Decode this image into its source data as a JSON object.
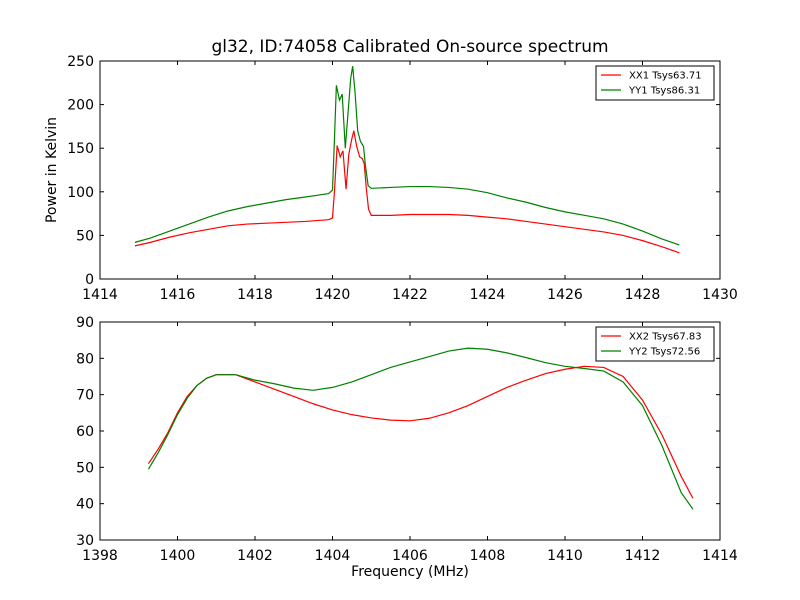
{
  "chart_data": [
    {
      "type": "line",
      "title": "gl32, ID:74058 Calibrated On-source spectrum",
      "xlabel": "",
      "ylabel": "Power in Kelvin",
      "xlim": [
        1414,
        1430
      ],
      "ylim": [
        0,
        250
      ],
      "xticks": [
        1414,
        1416,
        1418,
        1420,
        1422,
        1424,
        1426,
        1428,
        1430
      ],
      "yticks": [
        0,
        50,
        100,
        150,
        200,
        250
      ],
      "grid": false,
      "legend": "top-right",
      "series": [
        {
          "name": "XX1 Tsys63.71",
          "color": "#ff0000",
          "points": [
            [
              1414.9,
              38
            ],
            [
              1415.3,
              42
            ],
            [
              1415.8,
              48
            ],
            [
              1416.3,
              53
            ],
            [
              1416.8,
              57
            ],
            [
              1417.3,
              61
            ],
            [
              1417.8,
              63
            ],
            [
              1418.3,
              64
            ],
            [
              1418.8,
              65
            ],
            [
              1419.3,
              66
            ],
            [
              1419.6,
              67
            ],
            [
              1419.9,
              68
            ],
            [
              1420.0,
              70
            ],
            [
              1420.05,
              100
            ],
            [
              1420.12,
              153
            ],
            [
              1420.2,
              140
            ],
            [
              1420.27,
              147
            ],
            [
              1420.35,
              103
            ],
            [
              1420.42,
              143
            ],
            [
              1420.5,
              161
            ],
            [
              1420.55,
              170
            ],
            [
              1420.62,
              153
            ],
            [
              1420.7,
              140
            ],
            [
              1420.77,
              138
            ],
            [
              1420.82,
              132
            ],
            [
              1420.87,
              105
            ],
            [
              1420.93,
              80
            ],
            [
              1421.0,
              73
            ],
            [
              1421.5,
              73
            ],
            [
              1422.0,
              74
            ],
            [
              1422.5,
              74
            ],
            [
              1423.0,
              74
            ],
            [
              1423.5,
              73
            ],
            [
              1424.0,
              71
            ],
            [
              1424.5,
              69
            ],
            [
              1425.0,
              66
            ],
            [
              1425.5,
              63
            ],
            [
              1426.0,
              60
            ],
            [
              1426.5,
              57
            ],
            [
              1427.0,
              54
            ],
            [
              1427.5,
              50
            ],
            [
              1428.0,
              44
            ],
            [
              1428.5,
              37
            ],
            [
              1428.95,
              30
            ]
          ]
        },
        {
          "name": "YY1 Tsys86.31",
          "color": "#008000",
          "points": [
            [
              1414.9,
              42
            ],
            [
              1415.3,
              47
            ],
            [
              1415.8,
              55
            ],
            [
              1416.3,
              63
            ],
            [
              1416.8,
              71
            ],
            [
              1417.3,
              78
            ],
            [
              1417.8,
              83
            ],
            [
              1418.3,
              87
            ],
            [
              1418.8,
              91
            ],
            [
              1419.3,
              94
            ],
            [
              1419.6,
              96
            ],
            [
              1419.9,
              98
            ],
            [
              1420.0,
              102
            ],
            [
              1420.05,
              160
            ],
            [
              1420.1,
              222
            ],
            [
              1420.18,
              205
            ],
            [
              1420.25,
              212
            ],
            [
              1420.33,
              150
            ],
            [
              1420.4,
              190
            ],
            [
              1420.47,
              230
            ],
            [
              1420.52,
              244
            ],
            [
              1420.58,
              215
            ],
            [
              1420.65,
              170
            ],
            [
              1420.72,
              158
            ],
            [
              1420.8,
              152
            ],
            [
              1420.85,
              130
            ],
            [
              1420.92,
              107
            ],
            [
              1421.0,
              104
            ],
            [
              1421.5,
              105
            ],
            [
              1422.0,
              106
            ],
            [
              1422.5,
              106
            ],
            [
              1423.0,
              105
            ],
            [
              1423.5,
              103
            ],
            [
              1424.0,
              99
            ],
            [
              1424.5,
              93
            ],
            [
              1425.0,
              88
            ],
            [
              1425.5,
              82
            ],
            [
              1426.0,
              77
            ],
            [
              1426.5,
              73
            ],
            [
              1427.0,
              69
            ],
            [
              1427.5,
              63
            ],
            [
              1428.0,
              55
            ],
            [
              1428.5,
              46
            ],
            [
              1428.95,
              39
            ]
          ]
        }
      ]
    },
    {
      "type": "line",
      "title": "",
      "xlabel": "Frequency (MHz)",
      "ylabel": "",
      "xlim": [
        1398,
        1414
      ],
      "ylim": [
        30,
        90
      ],
      "xticks": [
        1398,
        1400,
        1402,
        1404,
        1406,
        1408,
        1410,
        1412,
        1414
      ],
      "yticks": [
        30,
        40,
        50,
        60,
        70,
        80,
        90
      ],
      "grid": false,
      "legend": "top-right",
      "series": [
        {
          "name": "XX2 Tsys67.83",
          "color": "#ff0000",
          "points": [
            [
              1399.25,
              51
            ],
            [
              1399.5,
              55
            ],
            [
              1399.75,
              59.5
            ],
            [
              1400.0,
              65
            ],
            [
              1400.25,
              69.5
            ],
            [
              1400.5,
              72.5
            ],
            [
              1400.75,
              74.5
            ],
            [
              1401.0,
              75.5
            ],
            [
              1401.5,
              75.5
            ],
            [
              1402.0,
              73.5
            ],
            [
              1402.5,
              71.5
            ],
            [
              1403.0,
              69.5
            ],
            [
              1403.5,
              67.5
            ],
            [
              1404.0,
              65.8
            ],
            [
              1404.5,
              64.5
            ],
            [
              1405.0,
              63.6
            ],
            [
              1405.5,
              63.0
            ],
            [
              1406.0,
              62.8
            ],
            [
              1406.5,
              63.5
            ],
            [
              1407.0,
              65
            ],
            [
              1407.5,
              67
            ],
            [
              1408.0,
              69.5
            ],
            [
              1408.5,
              72
            ],
            [
              1409.0,
              74
            ],
            [
              1409.5,
              75.8
            ],
            [
              1410.0,
              77
            ],
            [
              1410.5,
              77.8
            ],
            [
              1411.0,
              77.5
            ],
            [
              1411.5,
              75
            ],
            [
              1412.0,
              68.5
            ],
            [
              1412.5,
              59
            ],
            [
              1413.0,
              47.5
            ],
            [
              1413.3,
              41.5
            ]
          ]
        },
        {
          "name": "YY2 Tsys72.56",
          "color": "#008000",
          "points": [
            [
              1399.25,
              49.5
            ],
            [
              1399.5,
              54
            ],
            [
              1399.75,
              59
            ],
            [
              1400.0,
              64.5
            ],
            [
              1400.25,
              69
            ],
            [
              1400.5,
              72.5
            ],
            [
              1400.75,
              74.5
            ],
            [
              1401.0,
              75.5
            ],
            [
              1401.5,
              75.5
            ],
            [
              1402.0,
              74
            ],
            [
              1402.5,
              73
            ],
            [
              1403.0,
              71.8
            ],
            [
              1403.5,
              71.2
            ],
            [
              1404.0,
              72
            ],
            [
              1404.5,
              73.5
            ],
            [
              1405.0,
              75.5
            ],
            [
              1405.5,
              77.5
            ],
            [
              1406.0,
              79
            ],
            [
              1406.5,
              80.5
            ],
            [
              1407.0,
              82
            ],
            [
              1407.5,
              82.8
            ],
            [
              1408.0,
              82.5
            ],
            [
              1408.5,
              81.5
            ],
            [
              1409.0,
              80.2
            ],
            [
              1409.5,
              78.8
            ],
            [
              1410.0,
              77.8
            ],
            [
              1410.5,
              77.2
            ],
            [
              1411.0,
              76.5
            ],
            [
              1411.5,
              73.5
            ],
            [
              1412.0,
              67
            ],
            [
              1412.5,
              56
            ],
            [
              1413.0,
              43
            ],
            [
              1413.3,
              38.5
            ]
          ]
        }
      ]
    }
  ]
}
